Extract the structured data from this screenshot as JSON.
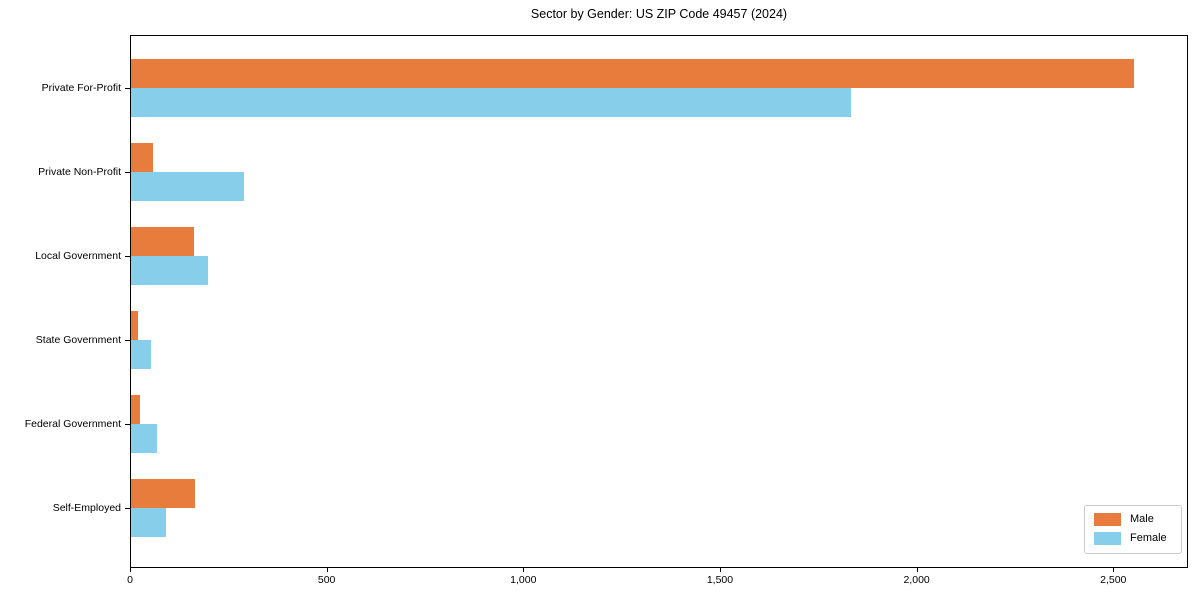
{
  "title": "Sector by Gender: US ZIP Code 49457 (2024)",
  "legend": {
    "position": "lower right",
    "items": [
      {
        "label": "Male",
        "color": "#e87c3d"
      },
      {
        "label": "Female",
        "color": "#87ceeb"
      }
    ]
  },
  "chart_data": {
    "type": "bar",
    "orientation": "horizontal",
    "title": "Sector by Gender: US ZIP Code 49457 (2024)",
    "categories": [
      "Private For-Profit",
      "Private Non-Profit",
      "Local Government",
      "State Government",
      "Federal Government",
      "Self-Employed"
    ],
    "series": [
      {
        "name": "Male",
        "color": "#e87c3d",
        "values": [
          2550,
          57,
          159,
          19,
          24,
          162
        ]
      },
      {
        "name": "Female",
        "color": "#87ceeb",
        "values": [
          1830,
          287,
          197,
          50,
          67,
          88
        ]
      }
    ],
    "xlabel": "",
    "ylabel": "",
    "xlim": [
      0,
      2690
    ],
    "x_ticks": [
      0,
      500,
      1000,
      1500,
      2000,
      2500
    ],
    "x_tick_labels": [
      "0",
      "500",
      "1,000",
      "1,500",
      "2,000",
      "2,500"
    ],
    "grid": false,
    "legend_position": "lower right"
  }
}
